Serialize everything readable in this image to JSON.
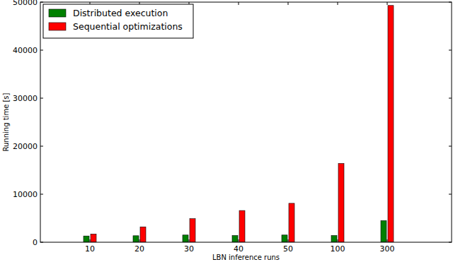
{
  "chart_data": {
    "type": "bar",
    "x_label": "LBN inference runs",
    "y_label": "Running time [s]",
    "categories": [
      "10",
      "20",
      "30",
      "40",
      "50",
      "100",
      "300"
    ],
    "series": [
      {
        "name": "Distributed execution",
        "color": "#008000",
        "values": [
          1300,
          1350,
          1500,
          1400,
          1500,
          1400,
          4500
        ]
      },
      {
        "name": "Sequential optimizations",
        "color": "#ff0000",
        "values": [
          1700,
          3200,
          4900,
          6600,
          8100,
          16400,
          49300
        ]
      }
    ],
    "ylim": [
      0,
      50000
    ],
    "yticks": [
      0,
      10000,
      20000,
      30000,
      40000,
      50000
    ],
    "legend": "upper left",
    "grid": false
  }
}
